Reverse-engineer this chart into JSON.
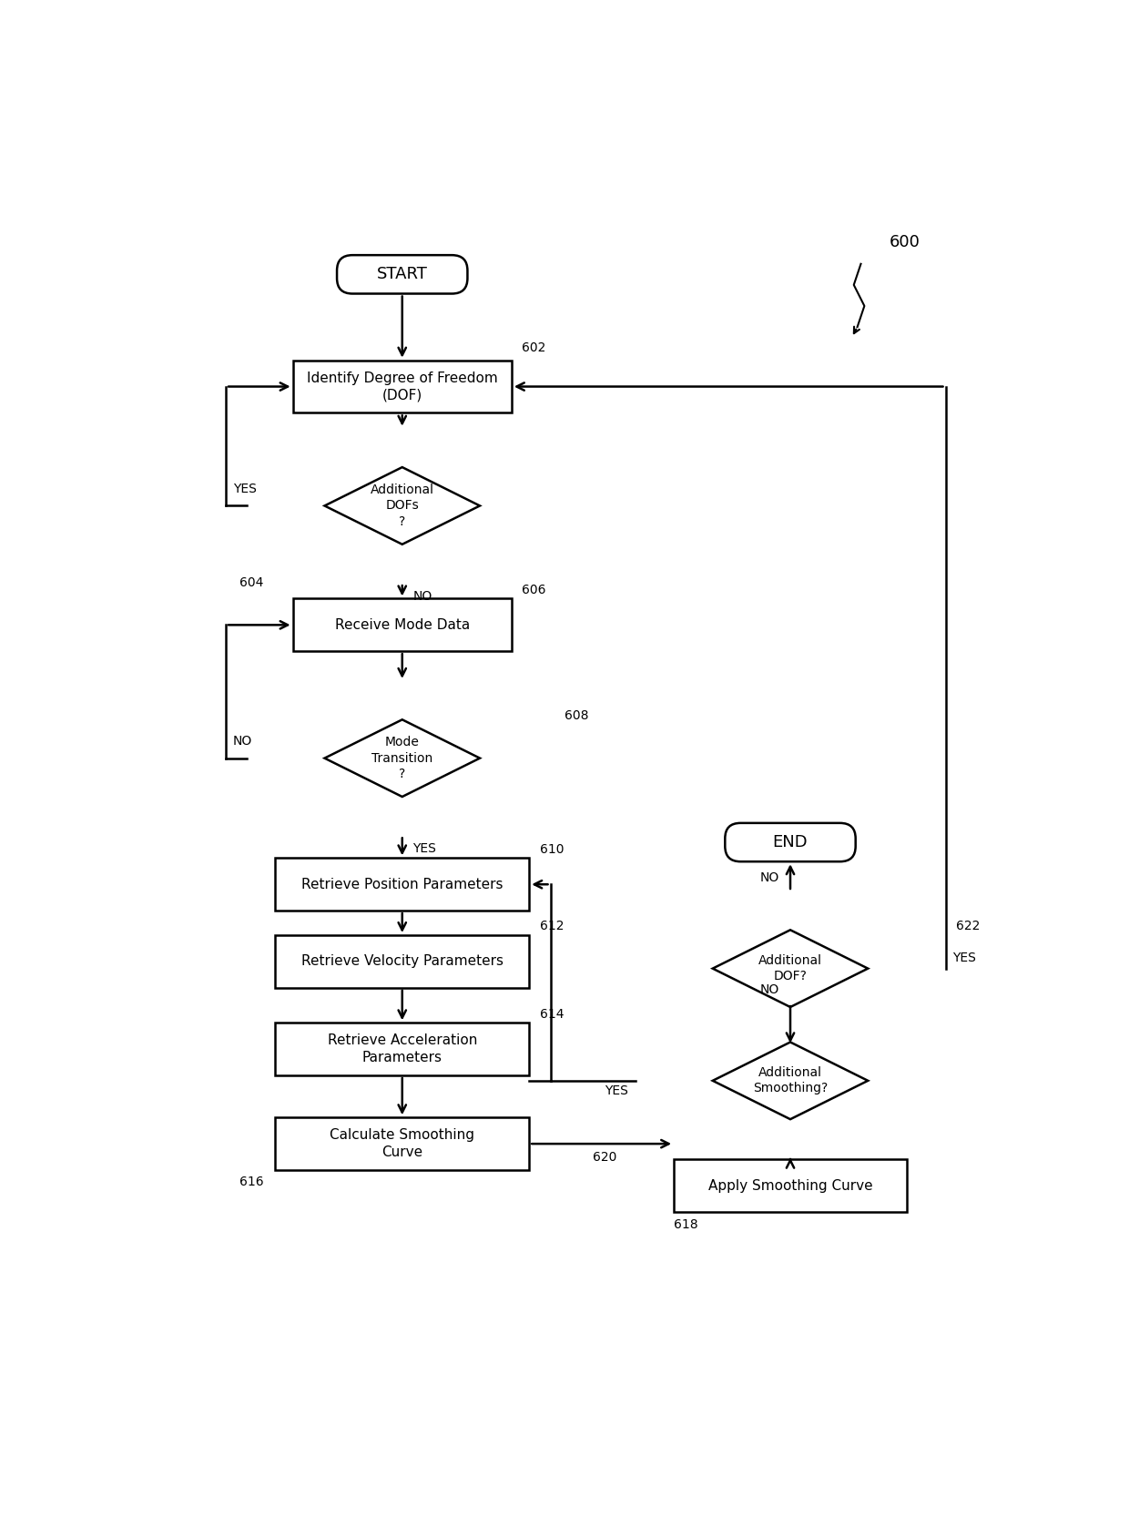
{
  "bg_color": "#ffffff",
  "line_color": "#000000",
  "text_color": "#000000",
  "fig_width": 12.4,
  "fig_height": 16.77,
  "label_600": "600",
  "label_602": "602",
  "label_604": "604",
  "label_606": "606",
  "label_608": "608",
  "label_610": "610",
  "label_612": "612",
  "label_614": "614",
  "label_616": "616",
  "label_618": "618",
  "label_620": "620",
  "label_622": "622"
}
